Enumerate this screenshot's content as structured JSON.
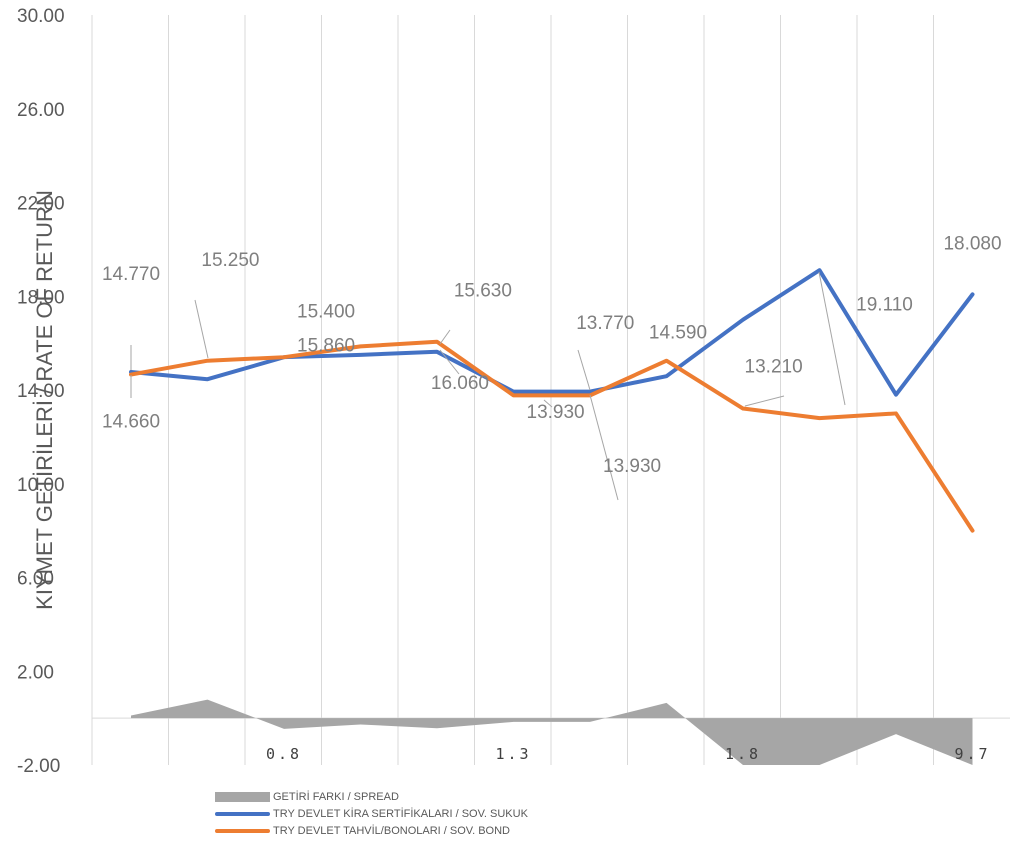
{
  "chart_data": {
    "type": "line",
    "ylabel": "KIYMET GETİRİLERİ / RATE OF RETURN",
    "ylim": [
      -2,
      30
    ],
    "yticks": [
      "30.00",
      "26.00",
      "22.00",
      "18.00",
      "14.00",
      "10.00",
      "6.00",
      "2.00",
      "-2.00"
    ],
    "grid": "vertical",
    "legend_position": "bottom-left",
    "x_labels": [
      {
        "label": "0.8",
        "at": 2.0
      },
      {
        "label": "1.3",
        "at": 5.0
      },
      {
        "label": "1.8",
        "at": 8.0
      },
      {
        "label": "9.7",
        "at": 11.0
      }
    ],
    "series": [
      {
        "name": "GETİRİ FARKI / SPREAD",
        "kind": "area",
        "color": "#a6a6a6",
        "values": [
          0.11,
          0.79,
          -0.46,
          -0.27,
          -0.43,
          -0.16,
          -0.16,
          0.65,
          -2.0,
          -2.0,
          -0.68,
          -2.0
        ]
      },
      {
        "name": "TRY DEVLET KİRA SERTİFİKALARI / SOV. SUKUK",
        "kind": "line",
        "color": "#4472c4",
        "values": [
          14.77,
          14.46,
          15.4,
          15.5,
          15.63,
          13.93,
          13.93,
          14.59,
          17.0,
          19.11,
          13.8,
          18.08
        ]
      },
      {
        "name": "TRY DEVLET TAHVİL/BONOLARI / SOV. BOND",
        "kind": "line",
        "color": "#ed7d31",
        "values": [
          14.66,
          15.25,
          15.4,
          15.86,
          16.06,
          13.77,
          13.77,
          15.25,
          13.21,
          12.8,
          13.0,
          8.0
        ]
      }
    ],
    "data_labels": [
      {
        "text": "14.770",
        "x": 0.0,
        "y": 18.7
      },
      {
        "text": "14.660",
        "x": 0.0,
        "y": 12.4
      },
      {
        "text": "15.250",
        "x": 1.3,
        "y": 19.3
      },
      {
        "text": "15.400",
        "x": 2.55,
        "y": 17.1
      },
      {
        "text": "15.860",
        "x": 2.55,
        "y": 15.65
      },
      {
        "text": "15.630",
        "x": 4.6,
        "y": 18.0
      },
      {
        "text": "16.060",
        "x": 4.3,
        "y": 14.05
      },
      {
        "text": "13.930",
        "x": 5.55,
        "y": 12.8
      },
      {
        "text": "13.770",
        "x": 6.2,
        "y": 16.6
      },
      {
        "text": "13.930",
        "x": 6.55,
        "y": 10.5
      },
      {
        "text": "14.590",
        "x": 7.15,
        "y": 16.2
      },
      {
        "text": "13.210",
        "x": 8.4,
        "y": 14.75
      },
      {
        "text": "19.110",
        "x": 9.85,
        "y": 17.4
      },
      {
        "text": "18.080",
        "x": 11.0,
        "y": 20.0
      }
    ]
  }
}
